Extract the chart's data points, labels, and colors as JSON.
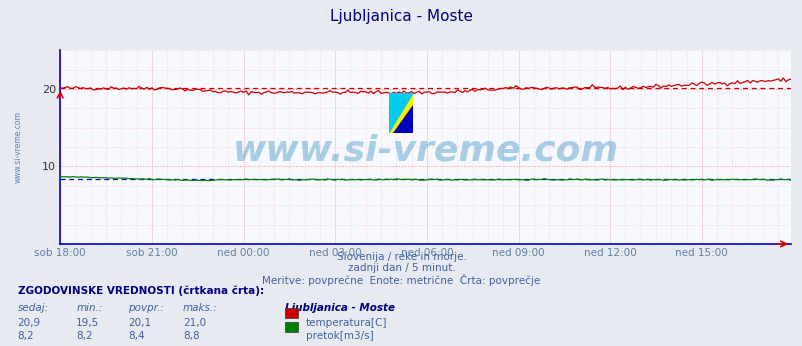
{
  "title": "Ljubljanica - Moste",
  "title_color": "#000080",
  "bg_color": "#e8eaf2",
  "plot_bg_color": "#f8f8ff",
  "xlabel_color": "#6080a0",
  "text_color": "#4060a0",
  "watermark_text": "www.si-vreme.com",
  "watermark_color": "#3090c0",
  "watermark_alpha": 0.4,
  "subtitle1": "Slovenija / reke in morje.",
  "subtitle2": "zadnji dan / 5 minut.",
  "subtitle3": "Meritve: povprečne  Enote: metrične  Črta: povprečje",
  "left_label": "www.si-vreme.com",
  "left_label_color": "#3060a0",
  "ylim": [
    0,
    25
  ],
  "yticks": [
    10,
    20
  ],
  "n_points": 288,
  "temp_color": "#cc0000",
  "flow_color": "#008000",
  "avg_temp_color": "#cc0000",
  "avg_flow_color": "#0000cc",
  "left_spine_color": "#0000cc",
  "bottom_spine_color": "#0000cc",
  "tick_labels": [
    "sob 18:00",
    "sob 21:00",
    "ned 00:00",
    "ned 03:00",
    "ned 06:00",
    "ned 09:00",
    "ned 12:00",
    "ned 15:00"
  ],
  "tick_positions": [
    0,
    36,
    72,
    108,
    144,
    180,
    216,
    252
  ],
  "legend_title": "Ljubljanica - Moste",
  "legend_entries": [
    "temperatura[C]",
    "pretok[m3/s]"
  ],
  "legend_colors": [
    "#cc0000",
    "#008000"
  ],
  "hist_label": "ZGODOVINSKE VREDNOSTI (črtkana črta):",
  "hist_headers": [
    "sedaj:",
    "min.:",
    "povpr.:",
    "maks.:"
  ],
  "temp_sedaj": "20,9",
  "temp_min": "19,5",
  "temp_povpr": "20,1",
  "temp_maks": "21,0",
  "flow_sedaj": "8,2",
  "flow_min": "8,2",
  "flow_povpr": "8,4",
  "flow_maks": "8,8"
}
